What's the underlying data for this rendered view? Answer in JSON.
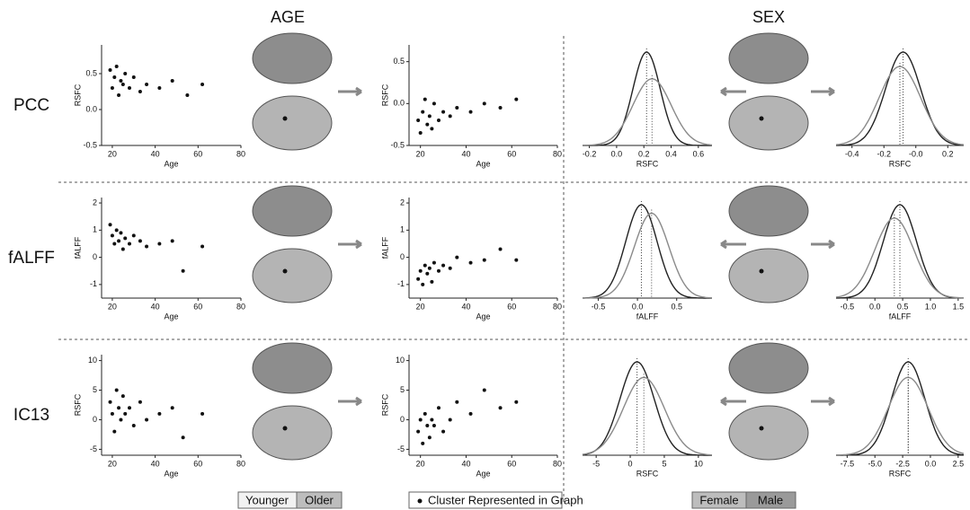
{
  "headers": {
    "age": "AGE",
    "sex": "SEX"
  },
  "row_labels": [
    "PCC",
    "fALFF",
    "IC13"
  ],
  "legend": {
    "age": [
      "Younger",
      "Older"
    ],
    "cluster": "Cluster Represented in Graph"
  },
  "chart_data": [
    {
      "type": "scatter",
      "xlabel": "Age",
      "ylabel": "RSFC",
      "xlim": [
        15,
        80
      ],
      "xticks": [
        20,
        40,
        60,
        80
      ],
      "ylim": [
        -0.5,
        0.9
      ],
      "yticks": [
        -0.5,
        {
          "value": 0,
          "label": "0.0"
        },
        0.5
      ],
      "x": [
        19,
        20,
        21,
        22,
        23,
        24,
        25,
        26,
        28,
        30,
        33,
        36,
        42,
        48,
        55,
        62
      ],
      "values": [
        0.55,
        0.3,
        0.45,
        0.6,
        0.2,
        0.4,
        0.35,
        0.5,
        0.3,
        0.45,
        0.25,
        0.35,
        0.3,
        0.4,
        0.2,
        0.35
      ]
    },
    {
      "type": "scatter",
      "xlabel": "Age",
      "ylabel": "RSFC",
      "xlim": [
        15,
        80
      ],
      "xticks": [
        20,
        40,
        60,
        80
      ],
      "ylim": [
        -0.5,
        0.7
      ],
      "yticks": [
        -0.5,
        {
          "value": 0,
          "label": "0.0"
        },
        0.5
      ],
      "x": [
        19,
        20,
        21,
        22,
        23,
        24,
        25,
        26,
        28,
        30,
        33,
        36,
        42,
        48,
        55,
        62
      ],
      "values": [
        -0.2,
        -0.35,
        -0.1,
        0.05,
        -0.25,
        -0.15,
        -0.3,
        0.0,
        -0.2,
        -0.1,
        -0.15,
        -0.05,
        -0.1,
        0.0,
        -0.05,
        0.05
      ]
    },
    {
      "type": "density",
      "xlabel": "RSFC",
      "xlim": [
        -0.25,
        0.7
      ],
      "xticks": [
        -0.2,
        {
          "value": 0,
          "label": "0.0"
        },
        0.2,
        0.4,
        0.6
      ],
      "series": [
        {
          "name": "Female",
          "color": "#222222",
          "mean": 0.22,
          "sd": 0.1
        },
        {
          "name": "Male",
          "color": "#8a8a8a",
          "mean": 0.26,
          "sd": 0.14
        }
      ]
    },
    {
      "type": "density",
      "xlabel": "RSFC",
      "xlim": [
        -0.5,
        0.3
      ],
      "xticks": [
        -0.4,
        -0.2,
        {
          "value": 0,
          "label": "-0.0"
        },
        0.2
      ],
      "series": [
        {
          "name": "Female",
          "color": "#222222",
          "mean": -0.08,
          "sd": 0.11
        },
        {
          "name": "Male",
          "color": "#8a8a8a",
          "mean": -0.1,
          "sd": 0.13
        }
      ]
    },
    {
      "type": "scatter",
      "xlabel": "Age",
      "ylabel": "fALFF",
      "xlim": [
        15,
        80
      ],
      "xticks": [
        20,
        40,
        60,
        80
      ],
      "ylim": [
        -1.5,
        2.2
      ],
      "yticks": [
        -1,
        0,
        1,
        2
      ],
      "x": [
        19,
        20,
        21,
        22,
        23,
        24,
        25,
        26,
        28,
        30,
        33,
        36,
        42,
        48,
        53,
        62
      ],
      "values": [
        1.2,
        0.8,
        0.5,
        1.0,
        0.6,
        0.9,
        0.3,
        0.7,
        0.5,
        0.8,
        0.6,
        0.4,
        0.5,
        0.6,
        -0.5,
        0.4
      ]
    },
    {
      "type": "scatter",
      "xlabel": "Age",
      "ylabel": "fALFF",
      "xlim": [
        15,
        80
      ],
      "xticks": [
        20,
        40,
        60,
        80
      ],
      "ylim": [
        -1.5,
        2.2
      ],
      "yticks": [
        -1,
        0,
        1,
        2
      ],
      "x": [
        19,
        20,
        21,
        22,
        23,
        24,
        25,
        26,
        28,
        30,
        33,
        36,
        42,
        48,
        55,
        62
      ],
      "values": [
        -0.8,
        -0.5,
        -1.0,
        -0.3,
        -0.6,
        -0.4,
        -0.9,
        -0.2,
        -0.5,
        -0.3,
        -0.4,
        0.0,
        -0.2,
        -0.1,
        0.3,
        -0.1
      ]
    },
    {
      "type": "density",
      "xlabel": "fALFF",
      "xlim": [
        -0.7,
        0.95
      ],
      "xticks": [
        -0.5,
        {
          "value": 0,
          "label": "0.0"
        },
        0.5
      ],
      "series": [
        {
          "name": "Female",
          "color": "#222222",
          "mean": 0.05,
          "sd": 0.2
        },
        {
          "name": "Male",
          "color": "#8a8a8a",
          "mean": 0.18,
          "sd": 0.22
        }
      ]
    },
    {
      "type": "density",
      "xlabel": "fALFF",
      "xlim": [
        -0.7,
        1.6
      ],
      "xticks": [
        -0.5,
        {
          "value": 0,
          "label": "0.0"
        },
        0.5,
        {
          "value": 1,
          "label": "1.0"
        },
        1.5
      ],
      "series": [
        {
          "name": "Female",
          "color": "#222222",
          "mean": 0.45,
          "sd": 0.3
        },
        {
          "name": "Male",
          "color": "#8a8a8a",
          "mean": 0.35,
          "sd": 0.35
        }
      ]
    },
    {
      "type": "scatter",
      "xlabel": "Age",
      "ylabel": "RSFC",
      "xlim": [
        15,
        80
      ],
      "xticks": [
        20,
        40,
        60,
        80
      ],
      "ylim": [
        -6,
        11
      ],
      "yticks": [
        -5,
        0,
        5,
        10
      ],
      "x": [
        19,
        20,
        21,
        22,
        23,
        24,
        25,
        26,
        28,
        30,
        33,
        36,
        42,
        48,
        53,
        62
      ],
      "values": [
        3,
        1,
        -2,
        5,
        2,
        0,
        4,
        1,
        2,
        -1,
        3,
        0,
        1,
        2,
        -3,
        1
      ]
    },
    {
      "type": "scatter",
      "xlabel": "Age",
      "ylabel": "RSFC",
      "xlim": [
        15,
        80
      ],
      "xticks": [
        20,
        40,
        60,
        80
      ],
      "ylim": [
        -6,
        11
      ],
      "yticks": [
        -5,
        0,
        5,
        10
      ],
      "x": [
        19,
        20,
        21,
        22,
        23,
        24,
        25,
        26,
        28,
        30,
        33,
        36,
        42,
        48,
        55,
        62
      ],
      "values": [
        -2,
        0,
        -4,
        1,
        -1,
        -3,
        0,
        -1,
        2,
        -2,
        0,
        3,
        1,
        5,
        2,
        3
      ]
    },
    {
      "type": "density",
      "xlabel": "RSFC",
      "xlim": [
        -7,
        12
      ],
      "xticks": [
        -5,
        0,
        5,
        10
      ],
      "series": [
        {
          "name": "Female",
          "color": "#222222",
          "mean": 1,
          "sd": 2.5
        },
        {
          "name": "Male",
          "color": "#8a8a8a",
          "mean": 2,
          "sd": 3
        }
      ]
    },
    {
      "type": "density",
      "xlabel": "RSFC",
      "xlim": [
        -8.5,
        3
      ],
      "xticks": [
        -7.5,
        {
          "value": -5,
          "label": "-5.0"
        },
        -2.5,
        {
          "value": 0,
          "label": "0.0"
        },
        2.5
      ],
      "series": [
        {
          "name": "Female",
          "color": "#222222",
          "mean": -2,
          "sd": 1.5
        },
        {
          "name": "Male",
          "color": "#8a8a8a",
          "mean": -2,
          "sd": 1.8
        }
      ]
    }
  ]
}
